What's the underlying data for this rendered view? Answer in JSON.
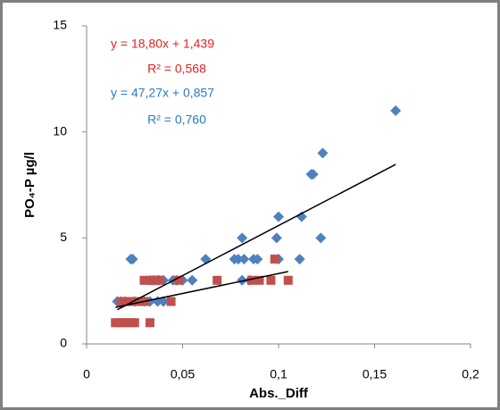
{
  "chart_data": {
    "type": "scatter",
    "x_label": "Abs._Diff",
    "y_label": "PO₄-P µg/l",
    "xlim": [
      0,
      0.2
    ],
    "ylim": [
      0,
      15
    ],
    "xticks": [
      0,
      {
        "value": 0.05,
        "label": "0,05"
      },
      {
        "value": 0.1,
        "label": "0,1"
      },
      {
        "value": 0.15,
        "label": "0,15"
      },
      {
        "value": 0.2,
        "label": "0,2"
      }
    ],
    "yticks": [
      0,
      5,
      10,
      15
    ],
    "series": [
      {
        "color": "#4f81bd",
        "marker": "diamond",
        "x": [
          0.161,
          0.123,
          0.118,
          0.117,
          0.122,
          0.112,
          0.1,
          0.099,
          0.111,
          0.081,
          0.062,
          0.077,
          0.079,
          0.082,
          0.087,
          0.089,
          0.1,
          0.081,
          0.085,
          0.047,
          0.05,
          0.055,
          0.024,
          0.023,
          0.016,
          0.018,
          0.02,
          0.025,
          0.03,
          0.033,
          0.035,
          0.037,
          0.038,
          0.04,
          0.033,
          0.037,
          0.04,
          0.045
        ],
        "values": [
          11,
          9,
          8,
          8,
          5,
          6,
          6,
          5,
          4,
          5,
          4,
          4,
          4,
          4,
          4,
          4,
          4,
          3,
          3,
          3,
          3,
          3,
          4,
          4,
          2,
          2,
          2,
          2,
          2,
          2,
          3,
          3,
          3,
          3,
          3,
          2,
          2,
          3
        ],
        "trendline": {
          "slope": 47.27,
          "intercept": 0.857,
          "r2": 0.76,
          "color": "#2b7bbf",
          "label": "y = 47,27x + 0,857",
          "r2_label": "R² = 0,760"
        }
      },
      {
        "color": "#c0504d",
        "marker": "square",
        "x": [
          0.015,
          0.017,
          0.019,
          0.021,
          0.023,
          0.025,
          0.033,
          0.018,
          0.02,
          0.022,
          0.026,
          0.03,
          0.033,
          0.036,
          0.03,
          0.044,
          0.048,
          0.068,
          0.086,
          0.09,
          0.096,
          0.098,
          0.105,
          0.038
        ],
        "values": [
          1,
          1,
          1,
          1,
          1,
          1,
          1,
          2,
          2,
          2,
          2,
          3,
          3,
          3,
          2,
          2,
          3,
          3,
          3,
          3,
          3,
          4,
          3,
          3
        ],
        "trendline": {
          "slope": 18.8,
          "intercept": 1.439,
          "r2": 0.568,
          "color": "#e8201c",
          "label": "y = 18,80x + 1,439",
          "r2_label": "R² = 0,568"
        }
      }
    ]
  }
}
